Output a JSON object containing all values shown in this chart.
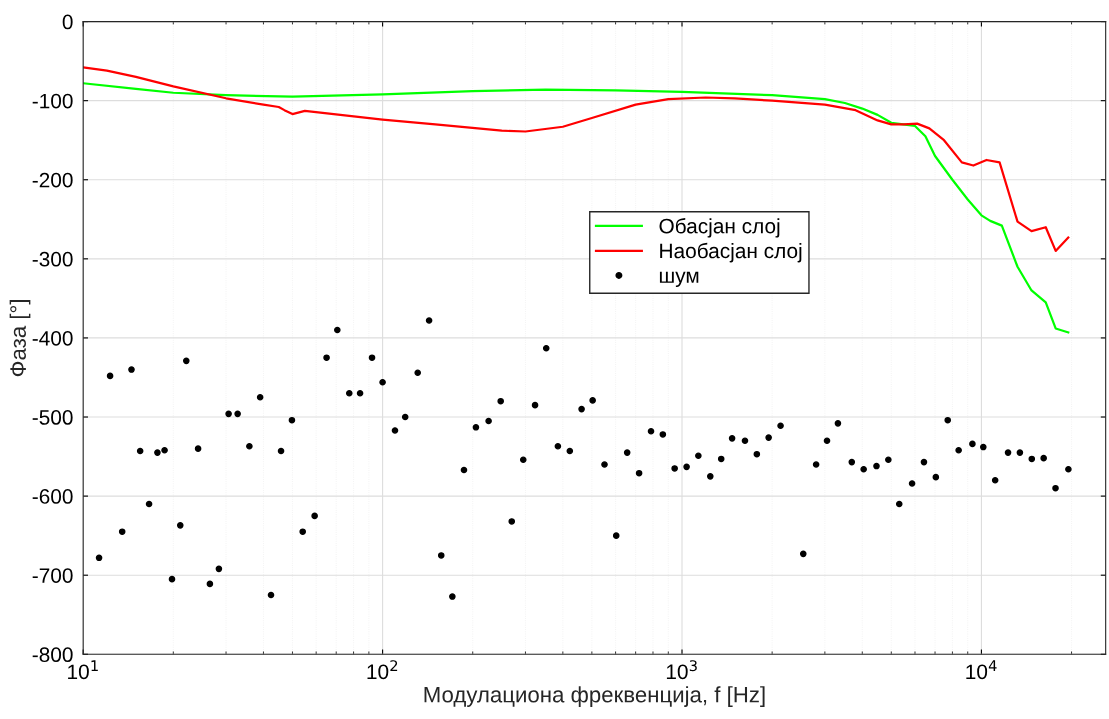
{
  "chart_data": {
    "type": "line",
    "xlabel": "Модулациона фреквенција, f [Hz]",
    "ylabel": "Фаза [°]",
    "log": "x",
    "grid": true,
    "legend": "center right",
    "xlim": [
      10,
      26000
    ],
    "ylim": [
      -800,
      0
    ],
    "xticks": [
      {
        "value": 10,
        "label": "10$^{1}$"
      },
      {
        "value": 100,
        "label": "10$^{2}$"
      },
      {
        "value": 1000,
        "label": "10$^{3}$"
      },
      {
        "value": 10000,
        "label": "10$^{4}$"
      }
    ],
    "yticks": [
      -800,
      -700,
      -600,
      -500,
      -400,
      -300,
      -200,
      -100,
      0
    ],
    "series": [
      {
        "name": "Обасјан слој",
        "color": "#00ff00",
        "marker": "none",
        "x": [
          10,
          15,
          20,
          30,
          50,
          100,
          200,
          350,
          600,
          1000,
          2000,
          3000,
          3500,
          4000,
          4500,
          5000,
          6000,
          6500,
          7000,
          8000,
          9000,
          10000,
          10700,
          11700,
          13200,
          14700,
          16400,
          17700,
          19500
        ],
        "values": [
          -78,
          -85,
          -90,
          -93,
          -95,
          -92,
          -88,
          -86,
          -87,
          -89,
          -93,
          -98,
          -103,
          -110,
          -118,
          -128,
          -132,
          -145,
          -170,
          -200,
          -225,
          -245,
          -252,
          -258,
          -310,
          -340,
          -355,
          -388,
          -393
        ]
      },
      {
        "name": "Наобасјан слој",
        "color": "#ff0000",
        "marker": "none",
        "x": [
          10,
          12,
          15,
          20,
          30,
          40,
          45,
          47,
          50,
          55,
          100,
          150,
          250,
          300,
          400,
          500,
          700,
          900,
          1200,
          1500,
          2000,
          3000,
          3800,
          4500,
          5000,
          5500,
          6100,
          6700,
          7500,
          8600,
          9400,
          10400,
          11500,
          13200,
          14700,
          16400,
          17700,
          19500
        ],
        "values": [
          -58,
          -62,
          -70,
          -82,
          -97,
          -105,
          -108,
          -112,
          -117,
          -113,
          -124,
          -130,
          -138,
          -139,
          -133,
          -122,
          -105,
          -98,
          -96,
          -97,
          -100,
          -105,
          -112,
          -125,
          -130,
          -130,
          -129,
          -135,
          -150,
          -178,
          -182,
          -175,
          -178,
          -253,
          -265,
          -260,
          -290,
          -273
        ]
      },
      {
        "name": "шум",
        "color": "#000000",
        "type": "scatter",
        "marker": "circle",
        "x": [
          11.3,
          12.3,
          13.5,
          14.5,
          15.5,
          16.6,
          17.7,
          18.7,
          19.8,
          21.1,
          22.1,
          24.2,
          26.5,
          28.4,
          30.6,
          32.8,
          35.9,
          39.0,
          42.4,
          45.8,
          49.8,
          54.1,
          59.3,
          65.0,
          70.6,
          77.4,
          84.1,
          92.2,
          100,
          110,
          119,
          131,
          143,
          157,
          171,
          187,
          205,
          226,
          248,
          270,
          295,
          323,
          352,
          385,
          422,
          462,
          503,
          551,
          603,
          656,
          719,
          788,
          863,
          945,
          1036,
          1134,
          1243,
          1352,
          1470,
          1623,
          1778,
          1947,
          2134,
          2541,
          2805,
          3050,
          3317,
          3690,
          4043,
          4462,
          4888,
          5316,
          5867,
          6428,
          7043,
          7717,
          8393,
          9331,
          10146,
          11115,
          12272,
          13443,
          14730,
          16140,
          17680,
          19520
        ],
        "values": [
          -678,
          -448,
          -645,
          -440,
          -543,
          -610,
          -545,
          -542,
          -705,
          -637,
          -429,
          -540,
          -711,
          -692,
          -496,
          -496,
          -537,
          -475,
          -725,
          -543,
          -504,
          -645,
          -625,
          -425,
          -390,
          -470,
          -470,
          -425,
          -456,
          -517,
          -500,
          -444,
          -378,
          -675,
          -727,
          -567,
          -513,
          -505,
          -480,
          -632,
          -554,
          -485,
          -413,
          -537,
          -543,
          -490,
          -479,
          -560,
          -650,
          -545,
          -571,
          -518,
          -522,
          -565,
          -563,
          -549,
          -575,
          -553,
          -527,
          -530,
          -547,
          -526,
          -511,
          -673,
          -560,
          -530,
          -508,
          -557,
          -566,
          -562,
          -554,
          -610,
          -584,
          -557,
          -576,
          -504,
          -542,
          -534,
          -538,
          -580,
          -545,
          -545,
          -553,
          -552,
          -590,
          -566
        ]
      }
    ]
  }
}
